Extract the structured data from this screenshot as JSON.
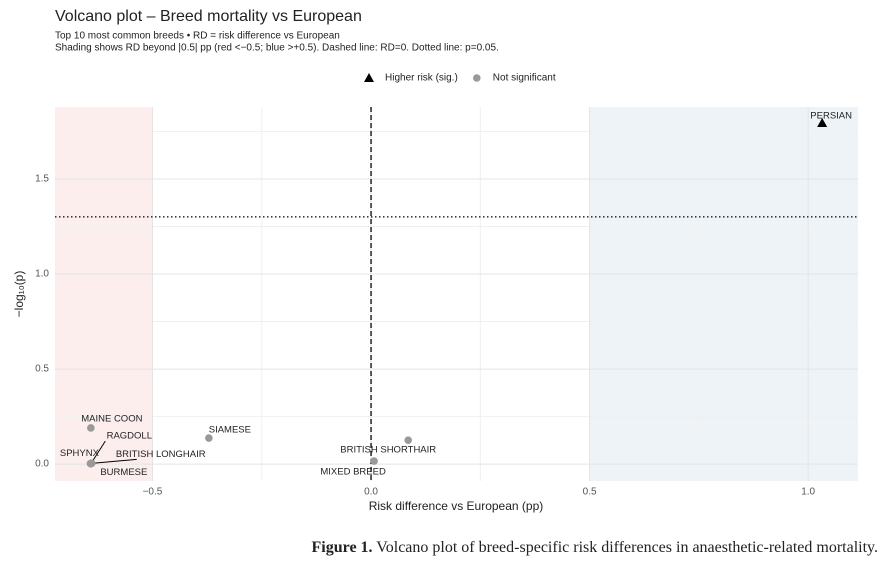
{
  "chart_data": {
    "type": "scatter",
    "title": "Volcano plot – Breed mortality vs European",
    "subtitle": [
      "Top 10 most common breeds • RD = risk difference vs European",
      "Shading shows RD beyond |0.5| pp (red <−0.5; blue >+0.5). Dashed line: RD=0. Dotted line: p=0.05."
    ],
    "x_label": "Risk difference vs European (pp)",
    "y_label": "−log₁₀(p)",
    "xlim": [
      -0.723,
      1.114
    ],
    "ylim": [
      -0.089,
      1.879
    ],
    "xticks": [
      {
        "value": -0.5,
        "label": "−0.5"
      },
      {
        "value": 0,
        "label": "0.0"
      },
      0.5,
      {
        "value": 1,
        "label": "1.0"
      }
    ],
    "yticks": [
      {
        "value": 0,
        "label": "0.0"
      },
      0.5,
      {
        "value": 1,
        "label": "1.0"
      },
      1.5
    ],
    "grid": true,
    "minor_grid": true,
    "reference_lines": {
      "x": 0,
      "y": 1.301
    },
    "shading": {
      "threshold": 0.5,
      "low_color": "#fdeeee",
      "high_color": "#eef3f8"
    },
    "legend": "top",
    "series": [
      {
        "name": "Higher risk (sig.)",
        "color": "#000000",
        "marker": "triangle",
        "x": [
          1.032
        ],
        "y": [
          1.795
        ],
        "labels": [
          "PERSIAN"
        ]
      },
      {
        "name": "Not significant",
        "color": "#999999",
        "marker": "circle",
        "x": [
          -0.641,
          -0.371,
          0.085,
          0.007,
          -0.64,
          -0.642,
          -0.639,
          -0.641
        ],
        "y": [
          0.19,
          0.137,
          0.126,
          0.016,
          0.005,
          0.003,
          0.004,
          0.002
        ],
        "labels": [
          "MAINE COON",
          "SIAMESE",
          "BRITISH SHORTHAIR",
          "MIXED BREED",
          "RAGDOLL",
          "SPHYNX",
          "BRITISH LONGHAIR",
          "BURMESE"
        ]
      }
    ]
  },
  "caption": {
    "label": "Figure 1.",
    "text": "Volcano plot of breed-specific risk differences in anaesthetic-related mortality."
  }
}
